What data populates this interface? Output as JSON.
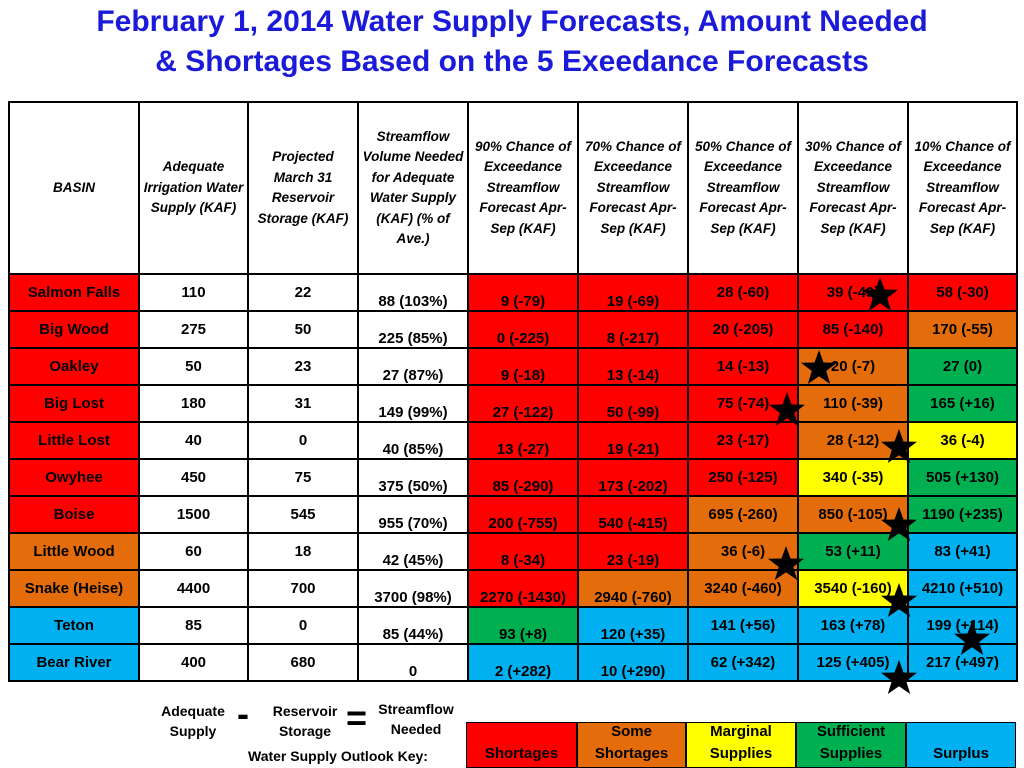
{
  "title": {
    "line1": "February 1, 2014  Water Supply Forecasts,  Amount Needed",
    "line2": "& Shortages Based on the 5 Exeedance Forecasts"
  },
  "headers": [
    "BASIN",
    "Adequate Irrigation Water Supply (KAF)",
    "Projected March 31 Reservoir Storage (KAF)",
    "Streamflow Volume Needed for Adequate Water Supply (KAF) (% of Ave.)",
    "90% Chance of Exceedance Streamflow Forecast Apr-Sep (KAF)",
    "70% Chance of Exceedance Streamflow Forecast Apr-Sep (KAF)",
    "50% Chance of Exceedance Streamflow Forecast Apr-Sep (KAF)",
    "30% Chance of Exceedance Streamflow Forecast Apr-Sep (KAF)",
    "10% Chance of Exceedance Streamflow Forecast Apr-Sep (KAF)"
  ],
  "rows": [
    {
      "basin": "Salmon Falls",
      "supply": "110",
      "storage": "22",
      "needed": "88 (103%)",
      "f90": "9 (-79)",
      "f70": "19 (-69)",
      "f50": "28 (-60)",
      "f30": "39 (-49)",
      "f10": "58 (-30)"
    },
    {
      "basin": "Big Wood",
      "supply": "275",
      "storage": "50",
      "needed": "225 (85%)",
      "f90": "0 (-225)",
      "f70": "8 (-217)",
      "f50": "20 (-205)",
      "f30": "85 (-140)",
      "f10": "170 (-55)"
    },
    {
      "basin": "Oakley",
      "supply": "50",
      "storage": "23",
      "needed": "27 (87%)",
      "f90": "9 (-18)",
      "f70": "13 (-14)",
      "f50": "14 (-13)",
      "f30": "20 (-7)",
      "f10": "27 (0)"
    },
    {
      "basin": "Big Lost",
      "supply": "180",
      "storage": "31",
      "needed": "149 (99%)",
      "f90": "27 (-122)",
      "f70": "50 (-99)",
      "f50": "75 (-74)",
      "f30": "110 (-39)",
      "f10": "165 (+16)"
    },
    {
      "basin": "Little Lost",
      "supply": "40",
      "storage": "0",
      "needed": "40 (85%)",
      "f90": "13 (-27)",
      "f70": "19 (-21)",
      "f50": "23 (-17)",
      "f30": "28 (-12)",
      "f10": "36 (-4)"
    },
    {
      "basin": "Owyhee",
      "supply": "450",
      "storage": "75",
      "needed": "375 (50%)",
      "f90": "85 (-290)",
      "f70": "173 (-202)",
      "f50": "250 (-125)",
      "f30": "340 (-35)",
      "f10": "505 (+130)"
    },
    {
      "basin": "Boise",
      "supply": "1500",
      "storage": "545",
      "needed": "955 (70%)",
      "f90": "200 (-755)",
      "f70": "540 (-415)",
      "f50": "695 (-260)",
      "f30": "850 (-105)",
      "f10": "1190 (+235)"
    },
    {
      "basin": "Little Wood",
      "supply": "60",
      "storage": "18",
      "needed": "42 (45%)",
      "f90": "8 (-34)",
      "f70": "23 (-19)",
      "f50": "36 (-6)",
      "f30": "53 (+11)",
      "f10": "83 (+41)"
    },
    {
      "basin": "Snake (Heise)",
      "supply": "4400",
      "storage": "700",
      "needed": "3700 (98%)",
      "f90": "2270 (-1430)",
      "f70": "2940 (-760)",
      "f50": "3240 (-460)",
      "f30": "3540 (-160)",
      "f10": "4210 (+510)"
    },
    {
      "basin": "Teton",
      "supply": "85",
      "storage": "0",
      "needed": "85 (44%)",
      "f90": "93 (+8)",
      "f70": "120 (+35)",
      "f50": "141 (+56)",
      "f30": "163 (+78)",
      "f10": "199 (+114)"
    },
    {
      "basin": "Bear River",
      "supply": "400",
      "storage": "680",
      "needed": "0",
      "f90": "2 (+282)",
      "f70": "10 (+290)",
      "f50": "62 (+342)",
      "f30": "125 (+405)",
      "f10": "217 (+497)"
    }
  ],
  "equation": {
    "term1": "Adequate Supply",
    "minus": "-",
    "term2": "Reservoir Storage",
    "equals": "=",
    "term3": "Streamflow Needed"
  },
  "key": {
    "label": "Water Supply Outlook Key:",
    "items": [
      {
        "label": "Shortages",
        "color": "#ff0000"
      },
      {
        "label": "Some Shortages",
        "color": "#e46c0a"
      },
      {
        "label": "Marginal Supplies",
        "color": "#ffff00"
      },
      {
        "label": "Sufficient Supplies",
        "color": "#00b050"
      },
      {
        "label": "Surplus",
        "color": "#00b0f0"
      }
    ]
  },
  "colors": {
    "title": "#1a1ad8",
    "shortages": "#ff0000",
    "some_shortages": "#e46c0a",
    "marginal": "#ffff00",
    "sufficient": "#00b050",
    "surplus": "#00b0f0"
  },
  "markers": {
    "icon": "star-icon",
    "count": 11
  }
}
